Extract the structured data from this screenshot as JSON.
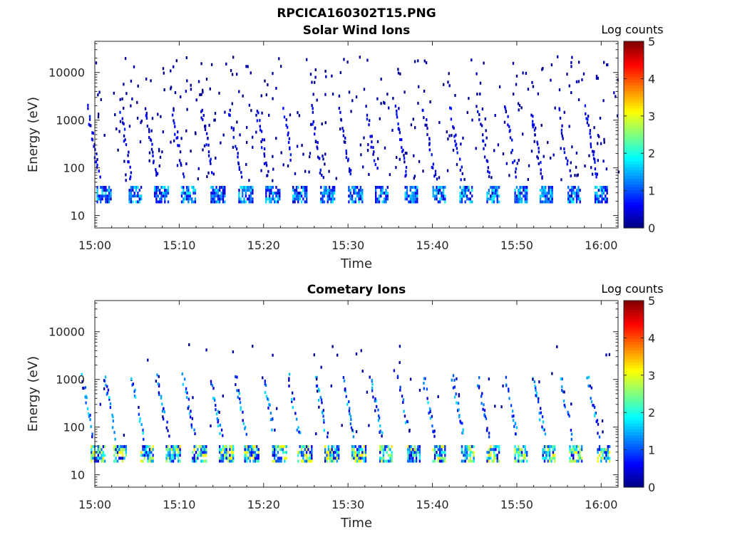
{
  "figure": {
    "title": "RPCICA160302T15.PNG"
  },
  "chart_data": [
    {
      "type": "heatmap",
      "title": "Solar Wind Ions",
      "xlabel": "Time",
      "ylabel": "Energy (eV)",
      "x_ticks": [
        "15:00",
        "15:10",
        "15:20",
        "15:30",
        "15:40",
        "15:50",
        "16:00"
      ],
      "x_range_min": [
        0,
        62
      ],
      "y_scale": "log",
      "y_ticks": [
        "10",
        "100",
        "1000",
        "10000"
      ],
      "y_range_eV": [
        5.5,
        45000
      ],
      "colorbar": {
        "label": "Log counts",
        "ticks": [
          "0",
          "1",
          "2",
          "3",
          "4",
          "5"
        ],
        "range": [
          0,
          5
        ],
        "colormap": "jet"
      },
      "pattern": {
        "pulse_times_min": [
          1.0,
          4.8,
          7.8,
          11.0,
          14.5,
          17.8,
          21.0,
          24.2,
          27.5,
          30.8,
          34.0,
          37.5,
          40.8,
          44.0,
          47.2,
          50.5,
          53.5,
          56.8,
          60.0
        ],
        "core_energy_eV": [
          18,
          40
        ],
        "core_level_max": 1.6,
        "scatter_level": 0.3
      }
    },
    {
      "type": "heatmap",
      "title": "Cometary Ions",
      "xlabel": "Time",
      "ylabel": "Energy (eV)",
      "x_ticks": [
        "15:00",
        "15:10",
        "15:20",
        "15:30",
        "15:40",
        "15:50",
        "16:00"
      ],
      "x_range_min": [
        0,
        62
      ],
      "y_scale": "log",
      "y_ticks": [
        "10",
        "100",
        "1000",
        "10000"
      ],
      "y_range_eV": [
        5.5,
        45000
      ],
      "colorbar": {
        "label": "Log counts",
        "ticks": [
          "0",
          "1",
          "2",
          "3",
          "4",
          "5"
        ],
        "range": [
          0,
          5
        ],
        "colormap": "jet"
      },
      "pattern": {
        "pulse_times_min": [
          0.3,
          3.0,
          6.2,
          9.2,
          12.3,
          15.5,
          18.5,
          21.8,
          24.8,
          28.0,
          31.2,
          34.5,
          37.8,
          40.8,
          44.2,
          47.2,
          50.5,
          53.8,
          57.0,
          60.3
        ],
        "core_energy_eV": [
          18,
          40
        ],
        "core_level_max": 3.0,
        "scatter_level": 0.3
      }
    }
  ]
}
